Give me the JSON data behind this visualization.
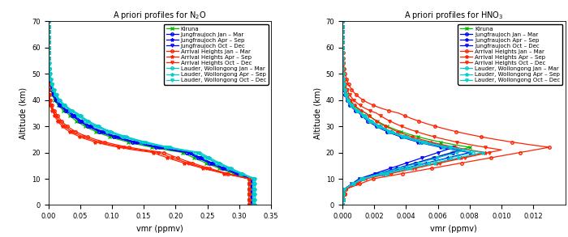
{
  "title_n2o": "A priori profiles for N$_2$O",
  "title_hno3": "A priori profiles for HNO$_3$",
  "xlabel": "vmr (ppmv)",
  "ylabel": "Altitude (km)",
  "n2o_xlim": [
    0,
    0.35
  ],
  "hno3_xlim": [
    0,
    0.014
  ],
  "ylim": [
    0,
    70
  ],
  "n2o_xticks": [
    0,
    0.05,
    0.1,
    0.15,
    0.2,
    0.25,
    0.3,
    0.35
  ],
  "hno3_xticks": [
    0,
    0.002,
    0.004,
    0.006,
    0.008,
    0.01,
    0.012
  ],
  "legend_entries": [
    "Kiruna",
    "Jungfraujoch Jan – Mar",
    "Jungfraujoch Apr – Sep",
    "Jungfraujoch Oct – Dec",
    "Arrival Heights Jan – Mar",
    "Arrival Heights Apr – Sep",
    "Arrival Heights Oct – Dec",
    "Lauder, Wollongong Jan – Mar",
    "Lauder, Wollongong Apr – Sep",
    "Lauder, Wollongong Oct – Dec"
  ],
  "c_kiruna": "#00bb00",
  "c_jung": "#0000ff",
  "c_jung_med": "#4444ff",
  "c_jung_dark": "#6666cc",
  "c_arr": "#ff2200",
  "c_arr_med": "#ff6644",
  "c_laud": "#00cccc",
  "lw": 0.9,
  "ms": 2.5
}
